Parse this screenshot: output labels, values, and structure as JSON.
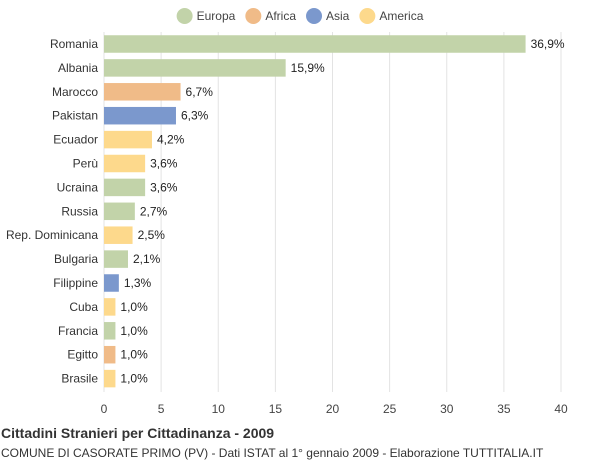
{
  "chart_data": {
    "type": "bar",
    "orientation": "horizontal",
    "title": "Cittadini Stranieri per Cittadinanza - 2009",
    "subtitle": "COMUNE DI CASORATE PRIMO (PV) - Dati ISTAT al 1° gennaio 2009 - Elaborazione TUTTITALIA.IT",
    "xlim": [
      0,
      40
    ],
    "xticks": [
      0,
      5,
      10,
      15,
      20,
      25,
      30,
      35,
      40
    ],
    "grid": true,
    "legend_position": "top",
    "legend": [
      {
        "name": "Europa",
        "color": "#c2d3a9"
      },
      {
        "name": "Africa",
        "color": "#f0bb88"
      },
      {
        "name": "Asia",
        "color": "#7b98cd"
      },
      {
        "name": "America",
        "color": "#fdd98c"
      }
    ],
    "bars": [
      {
        "category": "Romania",
        "value": 36.9,
        "label": "36,9%",
        "group": "Europa"
      },
      {
        "category": "Albania",
        "value": 15.9,
        "label": "15,9%",
        "group": "Europa"
      },
      {
        "category": "Marocco",
        "value": 6.7,
        "label": "6,7%",
        "group": "Africa"
      },
      {
        "category": "Pakistan",
        "value": 6.3,
        "label": "6,3%",
        "group": "Asia"
      },
      {
        "category": "Ecuador",
        "value": 4.2,
        "label": "4,2%",
        "group": "America"
      },
      {
        "category": "Perù",
        "value": 3.6,
        "label": "3,6%",
        "group": "America"
      },
      {
        "category": "Ucraina",
        "value": 3.6,
        "label": "3,6%",
        "group": "Europa"
      },
      {
        "category": "Russia",
        "value": 2.7,
        "label": "2,7%",
        "group": "Europa"
      },
      {
        "category": "Rep. Dominicana",
        "value": 2.5,
        "label": "2,5%",
        "group": "America"
      },
      {
        "category": "Bulgaria",
        "value": 2.1,
        "label": "2,1%",
        "group": "Europa"
      },
      {
        "category": "Filippine",
        "value": 1.3,
        "label": "1,3%",
        "group": "Asia"
      },
      {
        "category": "Cuba",
        "value": 1.0,
        "label": "1,0%",
        "group": "America"
      },
      {
        "category": "Francia",
        "value": 1.0,
        "label": "1,0%",
        "group": "Europa"
      },
      {
        "category": "Egitto",
        "value": 1.0,
        "label": "1,0%",
        "group": "Africa"
      },
      {
        "category": "Brasile",
        "value": 1.0,
        "label": "1,0%",
        "group": "America"
      }
    ]
  }
}
